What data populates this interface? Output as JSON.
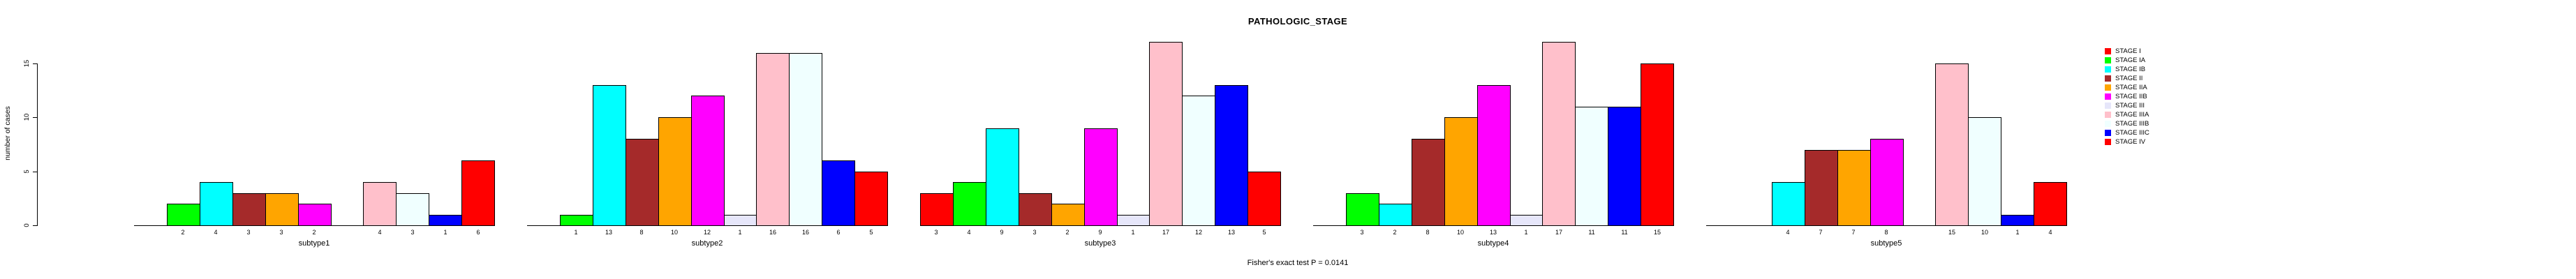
{
  "chart_data": {
    "type": "bar",
    "title": "PATHOLOGIC_STAGE",
    "ylabel": "number of cases",
    "footer": "Fisher's exact test P = 0.0141",
    "yticks": [
      0,
      5,
      10,
      15
    ],
    "ylim": [
      0,
      17.3
    ],
    "grid": false,
    "legend_position": "right",
    "legend_title": "",
    "stages": [
      {
        "name": "STAGE I",
        "color": "#FF0000"
      },
      {
        "name": "STAGE IA",
        "color": "#00FF00"
      },
      {
        "name": "STAGE IB",
        "color": "#00FFFF"
      },
      {
        "name": "STAGE II",
        "color": "#A52A2A"
      },
      {
        "name": "STAGE IIA",
        "color": "#FFA500"
      },
      {
        "name": "STAGE IIB",
        "color": "#FF00FF"
      },
      {
        "name": "STAGE III",
        "color": "#E6E6FA"
      },
      {
        "name": "STAGE IIIA",
        "color": "#FFC0CB"
      },
      {
        "name": "STAGE IIIB",
        "color": "#F0FFFF"
      },
      {
        "name": "STAGE IIIC",
        "color": "#0000FF"
      },
      {
        "name": "STAGE IV",
        "color": "#FF0000"
      }
    ],
    "panels": [
      {
        "xlabel": "subtype1",
        "values": [
          0,
          2,
          4,
          3,
          3,
          2,
          0,
          4,
          3,
          1,
          6
        ],
        "bar_labels": [
          "",
          "2",
          "4",
          "3",
          "3",
          "2",
          "",
          "4",
          "3",
          "1",
          "6"
        ]
      },
      {
        "xlabel": "subtype2",
        "values": [
          0,
          1,
          13,
          8,
          10,
          12,
          1,
          16,
          16,
          6,
          5
        ],
        "bar_labels": [
          "",
          "1",
          "13",
          "8",
          "10",
          "12",
          "1",
          "16",
          "16",
          "6",
          "5"
        ]
      },
      {
        "xlabel": "subtype3",
        "values": [
          3,
          4,
          9,
          3,
          2,
          9,
          1,
          17,
          12,
          13,
          5
        ],
        "bar_labels": [
          "3",
          "4",
          "9",
          "3",
          "2",
          "9",
          "1",
          "17",
          "12",
          "13",
          "5"
        ]
      },
      {
        "xlabel": "subtype4",
        "values": [
          0,
          3,
          2,
          8,
          10,
          13,
          1,
          17,
          11,
          11,
          15
        ],
        "bar_labels": [
          "",
          "3",
          "2",
          "8",
          "10",
          "13",
          "1",
          "17",
          "11",
          "11",
          "15"
        ]
      },
      {
        "xlabel": "subtype5",
        "values": [
          0,
          0,
          4,
          7,
          7,
          8,
          0,
          15,
          10,
          1,
          4
        ],
        "bar_labels": [
          "",
          "",
          "4",
          "7",
          "7",
          "8",
          "",
          "15",
          "10",
          "1",
          "4"
        ]
      }
    ]
  }
}
